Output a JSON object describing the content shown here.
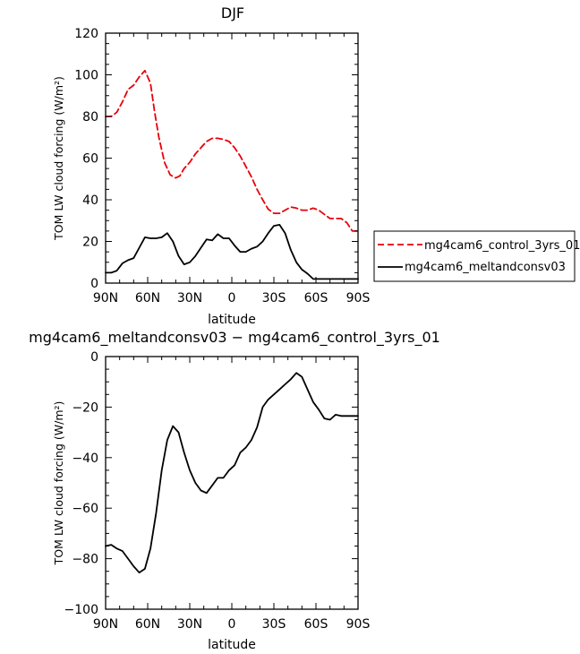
{
  "chart_data": [
    {
      "type": "line",
      "title": "DJF",
      "xlabel": "latitude",
      "ylabel": "TOM LW cloud forcing (W/m²)",
      "x_ticks": [
        -90,
        -60,
        -30,
        0,
        30,
        60,
        90
      ],
      "x_tick_labels": [
        "90N",
        "60N",
        "30N",
        "0",
        "30S",
        "60S",
        "90S"
      ],
      "xlim": [
        -90,
        90
      ],
      "ylim": [
        0,
        120
      ],
      "y_ticks": [
        0,
        20,
        40,
        60,
        80,
        100,
        120
      ],
      "grid": false,
      "legend_position": "right",
      "series": [
        {
          "name": "mg4cam6_control_3yrs_01",
          "color": "#e8000b",
          "style": "dashed",
          "x": [
            -90,
            -86,
            -82,
            -78,
            -74,
            -70,
            -66,
            -62,
            -58,
            -55,
            -52,
            -48,
            -44,
            -40,
            -37,
            -34,
            -30,
            -26,
            -22,
            -18,
            -14,
            -10,
            -6,
            -2,
            2,
            6,
            10,
            14,
            18,
            22,
            26,
            30,
            34,
            38,
            42,
            46,
            50,
            54,
            58,
            62,
            66,
            70,
            74,
            78,
            82,
            86,
            90
          ],
          "y": [
            80,
            80,
            82,
            87,
            93,
            95,
            99,
            102,
            96,
            82,
            70,
            58,
            52,
            50.5,
            51.5,
            55,
            58,
            62,
            65,
            68,
            69.5,
            69.5,
            69,
            68,
            65,
            61,
            56,
            51,
            45,
            40,
            35.5,
            33.5,
            33.5,
            35,
            36.5,
            36,
            35,
            35,
            36,
            35,
            33,
            31,
            31,
            31,
            29,
            25,
            25
          ]
        },
        {
          "name": "mg4cam6_meltandconsv03",
          "color": "#000000",
          "style": "solid",
          "x": [
            -90,
            -86,
            -82,
            -78,
            -74,
            -70,
            -66,
            -62,
            -58,
            -54,
            -50,
            -46,
            -42,
            -38,
            -34,
            -30,
            -26,
            -22,
            -18,
            -14,
            -10,
            -6,
            -2,
            2,
            6,
            10,
            14,
            18,
            22,
            26,
            30,
            34,
            38,
            42,
            46,
            50,
            54,
            58,
            62,
            66,
            70,
            74,
            78,
            82,
            86,
            90
          ],
          "y": [
            5,
            5,
            6,
            9.5,
            11,
            12,
            17,
            22,
            21.5,
            21.5,
            22,
            24,
            20,
            13,
            9,
            10,
            13,
            17,
            21,
            20.5,
            23.5,
            21.5,
            21.5,
            18,
            15,
            15,
            16.5,
            17.5,
            20,
            24,
            27.5,
            28,
            24,
            16,
            10,
            6.5,
            4.5,
            2,
            2,
            2,
            2,
            2,
            2,
            2,
            2,
            2
          ]
        }
      ]
    },
    {
      "type": "line",
      "title": "mg4cam6_meltandconsv03 − mg4cam6_control_3yrs_01",
      "xlabel": "latitude",
      "ylabel": "TOM LW cloud forcing (W/m²)",
      "x_ticks": [
        -90,
        -60,
        -30,
        0,
        30,
        60,
        90
      ],
      "x_tick_labels": [
        "90N",
        "60N",
        "30N",
        "0",
        "30S",
        "60S",
        "90S"
      ],
      "xlim": [
        -90,
        90
      ],
      "ylim": [
        -100,
        0
      ],
      "y_ticks": [
        -100,
        -80,
        -60,
        -40,
        -20,
        0
      ],
      "grid": false,
      "series": [
        {
          "name": "",
          "color": "#000000",
          "style": "solid",
          "x": [
            -90,
            -86,
            -82,
            -78,
            -74,
            -70,
            -66,
            -62,
            -58,
            -54,
            -50,
            -46,
            -42,
            -38,
            -34,
            -30,
            -26,
            -22,
            -18,
            -14,
            -10,
            -6,
            -2,
            2,
            6,
            10,
            14,
            18,
            22,
            26,
            30,
            34,
            38,
            42,
            46,
            50,
            54,
            58,
            62,
            66,
            70,
            74,
            78,
            82,
            86,
            90
          ],
          "y": [
            -75,
            -74.5,
            -76,
            -77,
            -80,
            -83,
            -85.5,
            -84,
            -76,
            -62,
            -45,
            -33,
            -27.5,
            -30,
            -38,
            -45,
            -50,
            -53,
            -54,
            -51,
            -48,
            -48,
            -45,
            -43,
            -38,
            -36,
            -33,
            -28,
            -20,
            -17,
            -15,
            -13,
            -11,
            -9,
            -6.5,
            -8,
            -13,
            -18,
            -21,
            -24.5,
            -25,
            -23,
            -23.5,
            -23.5,
            -23.5,
            -23.5
          ]
        }
      ]
    }
  ]
}
